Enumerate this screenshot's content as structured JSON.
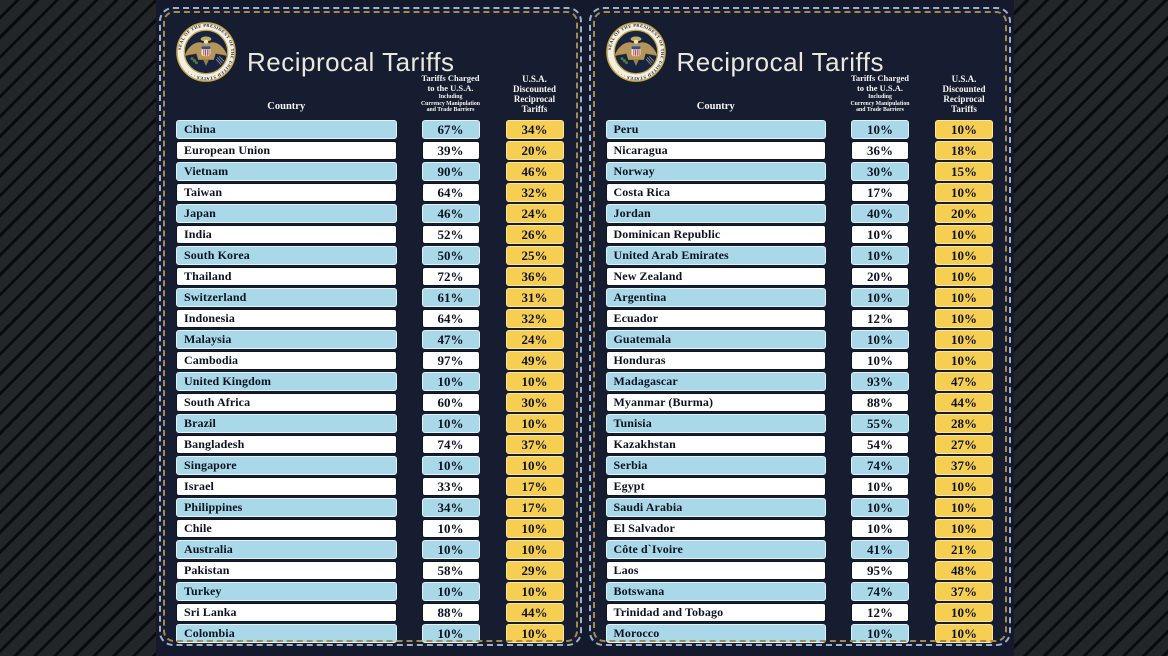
{
  "header": {
    "title": "Reciprocal Tariffs",
    "country_label": "Country",
    "charged_label": "Tariffs Charged\nto the U.S.A.",
    "charged_sublabel": "Including\nCurrency Manipulation\nand Trade Barriers",
    "discounted_label": "U.S.A. Discounted\nReciprocal Tariffs",
    "seal_text": "SEAL OF THE PRESIDENT OF THE UNITED STATES · · ·"
  },
  "colors": {
    "board_navy": "#171d31",
    "backdrop_navy": "#141a2c",
    "stripe_dark": "#232629",
    "row_blue": "#a9d9e9",
    "row_white": "#ffffff",
    "cell_gold": "#f6ce52",
    "border_silver_dash": "#9db1cc",
    "border_gold_dash": "#a8894c",
    "title_cream": "#eae7dd"
  },
  "chart_data": {
    "type": "table",
    "title": "Reciprocal Tariffs",
    "columns": [
      "Country",
      "Tariffs Charged to the U.S.A. Including Currency Manipulation and Trade Barriers",
      "U.S.A. Discounted Reciprocal Tariffs"
    ],
    "panels": [
      {
        "rows": [
          [
            "China",
            "67%",
            "34%"
          ],
          [
            "European Union",
            "39%",
            "20%"
          ],
          [
            "Vietnam",
            "90%",
            "46%"
          ],
          [
            "Taiwan",
            "64%",
            "32%"
          ],
          [
            "Japan",
            "46%",
            "24%"
          ],
          [
            "India",
            "52%",
            "26%"
          ],
          [
            "South Korea",
            "50%",
            "25%"
          ],
          [
            "Thailand",
            "72%",
            "36%"
          ],
          [
            "Switzerland",
            "61%",
            "31%"
          ],
          [
            "Indonesia",
            "64%",
            "32%"
          ],
          [
            "Malaysia",
            "47%",
            "24%"
          ],
          [
            "Cambodia",
            "97%",
            "49%"
          ],
          [
            "United Kingdom",
            "10%",
            "10%"
          ],
          [
            "South Africa",
            "60%",
            "30%"
          ],
          [
            "Brazil",
            "10%",
            "10%"
          ],
          [
            "Bangladesh",
            "74%",
            "37%"
          ],
          [
            "Singapore",
            "10%",
            "10%"
          ],
          [
            "Israel",
            "33%",
            "17%"
          ],
          [
            "Philippines",
            "34%",
            "17%"
          ],
          [
            "Chile",
            "10%",
            "10%"
          ],
          [
            "Australia",
            "10%",
            "10%"
          ],
          [
            "Pakistan",
            "58%",
            "29%"
          ],
          [
            "Turkey",
            "10%",
            "10%"
          ],
          [
            "Sri Lanka",
            "88%",
            "44%"
          ],
          [
            "Colombia",
            "10%",
            "10%"
          ]
        ]
      },
      {
        "rows": [
          [
            "Peru",
            "10%",
            "10%"
          ],
          [
            "Nicaragua",
            "36%",
            "18%"
          ],
          [
            "Norway",
            "30%",
            "15%"
          ],
          [
            "Costa Rica",
            "17%",
            "10%"
          ],
          [
            "Jordan",
            "40%",
            "20%"
          ],
          [
            "Dominican Republic",
            "10%",
            "10%"
          ],
          [
            "United Arab Emirates",
            "10%",
            "10%"
          ],
          [
            "New Zealand",
            "20%",
            "10%"
          ],
          [
            "Argentina",
            "10%",
            "10%"
          ],
          [
            "Ecuador",
            "12%",
            "10%"
          ],
          [
            "Guatemala",
            "10%",
            "10%"
          ],
          [
            "Honduras",
            "10%",
            "10%"
          ],
          [
            "Madagascar",
            "93%",
            "47%"
          ],
          [
            "Myanmar (Burma)",
            "88%",
            "44%"
          ],
          [
            "Tunisia",
            "55%",
            "28%"
          ],
          [
            "Kazakhstan",
            "54%",
            "27%"
          ],
          [
            "Serbia",
            "74%",
            "37%"
          ],
          [
            "Egypt",
            "10%",
            "10%"
          ],
          [
            "Saudi Arabia",
            "10%",
            "10%"
          ],
          [
            "El Salvador",
            "10%",
            "10%"
          ],
          [
            "Côte d`Ivoire",
            "41%",
            "21%"
          ],
          [
            "Laos",
            "95%",
            "48%"
          ],
          [
            "Botswana",
            "74%",
            "37%"
          ],
          [
            "Trinidad and Tobago",
            "12%",
            "10%"
          ],
          [
            "Morocco",
            "10%",
            "10%"
          ]
        ]
      }
    ]
  }
}
